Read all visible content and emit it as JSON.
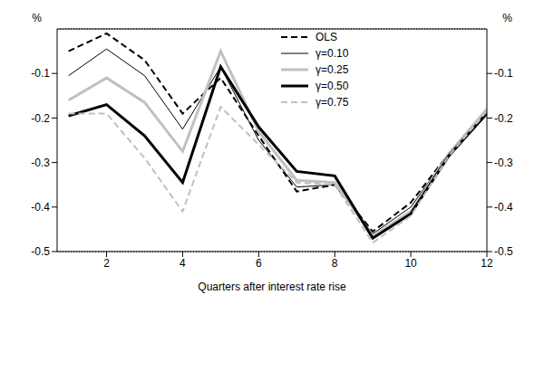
{
  "chart_data": {
    "type": "line",
    "x_label": "Quarters after interest rate rise",
    "y_label": "%",
    "x": [
      1,
      2,
      3,
      4,
      5,
      6,
      7,
      8,
      9,
      10,
      11,
      12
    ],
    "xlim": [
      0.7,
      12
    ],
    "xticks": [
      2,
      4,
      6,
      8,
      10,
      12
    ],
    "ylim": [
      -0.5,
      0
    ],
    "yticks": [
      -0.5,
      -0.4,
      -0.3,
      -0.2,
      -0.1
    ],
    "grid": true,
    "legend": "top-right",
    "series": [
      {
        "name": "OLS",
        "color": "#000000",
        "line_style": "dashed",
        "values": [
          -0.05,
          -0.01,
          -0.07,
          -0.19,
          -0.11,
          -0.24,
          -0.365,
          -0.35,
          -0.455,
          -0.39,
          -0.28,
          -0.19
        ]
      },
      {
        "name": "γ=0.10",
        "color": "#000000",
        "line_style": "solid",
        "values": [
          -0.105,
          -0.045,
          -0.105,
          -0.225,
          -0.085,
          -0.25,
          -0.355,
          -0.35,
          -0.46,
          -0.4,
          -0.28,
          -0.185
        ]
      },
      {
        "name": "γ=0.25",
        "color": "#c0c0c0",
        "line_style": "solid",
        "values": [
          -0.16,
          -0.11,
          -0.165,
          -0.275,
          -0.05,
          -0.23,
          -0.34,
          -0.345,
          -0.465,
          -0.41,
          -0.28,
          -0.18
        ]
      },
      {
        "name": "γ=0.50",
        "color": "#000000",
        "line_style": "solid",
        "values": [
          -0.195,
          -0.17,
          -0.24,
          -0.345,
          -0.085,
          -0.22,
          -0.32,
          -0.33,
          -0.47,
          -0.415,
          -0.285,
          -0.19
        ]
      },
      {
        "name": "γ=0.75",
        "color": "#c0c0c0",
        "line_style": "dashed",
        "values": [
          -0.19,
          -0.19,
          -0.29,
          -0.41,
          -0.175,
          -0.26,
          -0.345,
          -0.35,
          -0.48,
          -0.42,
          -0.285,
          -0.185
        ]
      }
    ]
  }
}
